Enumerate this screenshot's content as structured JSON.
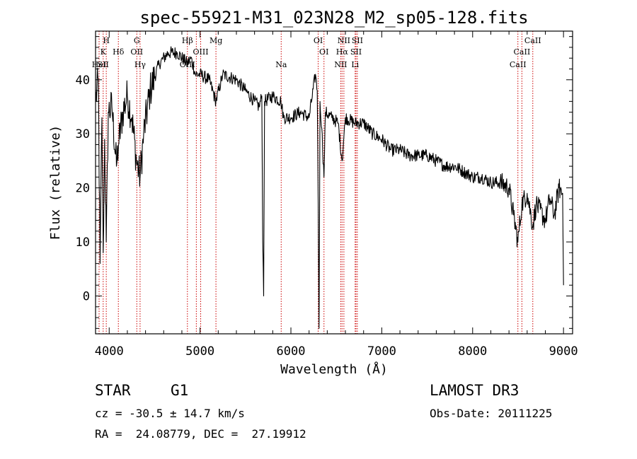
{
  "chart_data": {
    "type": "line",
    "title": "spec-55921-M31_023N28_M2_sp05-128.fits",
    "xlabel": "Wavelength (Å)",
    "ylabel": "Flux (relative)",
    "xlim": [
      3850,
      9100
    ],
    "ylim": [
      -7,
      49
    ],
    "x_ticks": [
      4000,
      5000,
      6000,
      7000,
      8000,
      9000
    ],
    "x_tick_labels": [
      "4000",
      "5000",
      "6000",
      "7000",
      "8000",
      "9000"
    ],
    "y_ticks": [
      0,
      10,
      20,
      30,
      40
    ],
    "y_tick_labels": [
      "0",
      "10",
      "20",
      "30",
      "40"
    ],
    "line_color": "#000000",
    "marker_line_color": "#cc0000",
    "spectrum_anchors": [
      [
        3850,
        36
      ],
      [
        3880,
        40
      ],
      [
        3900,
        6
      ],
      [
        3920,
        33
      ],
      [
        3934,
        8
      ],
      [
        3950,
        29
      ],
      [
        3968,
        10
      ],
      [
        3990,
        34
      ],
      [
        4030,
        35
      ],
      [
        4080,
        24
      ],
      [
        4102,
        28
      ],
      [
        4150,
        34
      ],
      [
        4200,
        37
      ],
      [
        4250,
        33
      ],
      [
        4300,
        25
      ],
      [
        4340,
        22
      ],
      [
        4380,
        30
      ],
      [
        4450,
        38
      ],
      [
        4550,
        43
      ],
      [
        4650,
        45
      ],
      [
        4750,
        45
      ],
      [
        4860,
        43
      ],
      [
        4900,
        44
      ],
      [
        4950,
        41
      ],
      [
        5000,
        41
      ],
      [
        5100,
        40
      ],
      [
        5175,
        36
      ],
      [
        5250,
        41
      ],
      [
        5400,
        40
      ],
      [
        5500,
        38
      ],
      [
        5600,
        36
      ],
      [
        5650,
        35
      ],
      [
        5680,
        37
      ],
      [
        5690,
        10
      ],
      [
        5700,
        0
      ],
      [
        5710,
        36
      ],
      [
        5800,
        37
      ],
      [
        5890,
        36
      ],
      [
        5920,
        33
      ],
      [
        6000,
        33
      ],
      [
        6100,
        34
      ],
      [
        6200,
        33
      ],
      [
        6270,
        41
      ],
      [
        6290,
        38
      ],
      [
        6300,
        18
      ],
      [
        6310,
        -6
      ],
      [
        6320,
        36
      ],
      [
        6340,
        31
      ],
      [
        6364,
        22
      ],
      [
        6380,
        34
      ],
      [
        6450,
        33
      ],
      [
        6520,
        32
      ],
      [
        6563,
        25
      ],
      [
        6600,
        33
      ],
      [
        6700,
        32
      ],
      [
        6800,
        32
      ],
      [
        6900,
        30
      ],
      [
        7000,
        29
      ],
      [
        7100,
        27
      ],
      [
        7200,
        27
      ],
      [
        7300,
        26
      ],
      [
        7400,
        26
      ],
      [
        7500,
        26
      ],
      [
        7600,
        25
      ],
      [
        7700,
        24
      ],
      [
        7800,
        24
      ],
      [
        7900,
        23
      ],
      [
        8000,
        22
      ],
      [
        8100,
        22
      ],
      [
        8200,
        21
      ],
      [
        8300,
        21
      ],
      [
        8400,
        20
      ],
      [
        8450,
        15
      ],
      [
        8498,
        10
      ],
      [
        8542,
        17
      ],
      [
        8600,
        19
      ],
      [
        8662,
        13
      ],
      [
        8700,
        17
      ],
      [
        8800,
        14
      ],
      [
        8850,
        18
      ],
      [
        8900,
        15
      ],
      [
        8950,
        20
      ],
      [
        8990,
        19
      ],
      [
        9000,
        2
      ]
    ],
    "line_markers": [
      {
        "x": 3889,
        "labels": [
          {
            "text": "HeI",
            "row": 3
          }
        ]
      },
      {
        "x": 3934,
        "labels": [
          {
            "text": "K",
            "row": 2
          },
          {
            "text": "SII",
            "row": 3
          }
        ]
      },
      {
        "x": 3968,
        "labels": [
          {
            "text": "H",
            "row": 1
          }
        ]
      },
      {
        "x": 4101,
        "labels": [
          {
            "text": "Hδ",
            "row": 2
          }
        ]
      },
      {
        "x": 4304,
        "labels": [
          {
            "text": "G",
            "row": 1
          },
          {
            "text": "OII",
            "row": 2
          }
        ]
      },
      {
        "x": 4340,
        "labels": [
          {
            "text": "Hγ",
            "row": 3
          }
        ]
      },
      {
        "x": 4861,
        "labels": [
          {
            "text": "Hβ",
            "row": 1
          },
          {
            "text": "OIII",
            "row": 3
          }
        ]
      },
      {
        "x": 4959,
        "labels": []
      },
      {
        "x": 5007,
        "labels": [
          {
            "text": "OIII",
            "row": 2
          }
        ]
      },
      {
        "x": 5175,
        "labels": [
          {
            "text": "Mg",
            "row": 1
          }
        ]
      },
      {
        "x": 5893,
        "labels": [
          {
            "text": "Na",
            "row": 3
          }
        ]
      },
      {
        "x": 6300,
        "labels": [
          {
            "text": "OI",
            "row": 1
          }
        ]
      },
      {
        "x": 6364,
        "labels": [
          {
            "text": "OI",
            "row": 2
          }
        ]
      },
      {
        "x": 6548,
        "labels": [
          {
            "text": "NII",
            "row": 3
          }
        ]
      },
      {
        "x": 6563,
        "labels": [
          {
            "text": "Hα",
            "row": 2
          }
        ]
      },
      {
        "x": 6583,
        "labels": [
          {
            "text": "NII",
            "row": 1
          }
        ]
      },
      {
        "x": 6707,
        "labels": [
          {
            "text": "Li",
            "row": 3
          }
        ]
      },
      {
        "x": 6716,
        "labels": [
          {
            "text": "SII",
            "row": 2
          }
        ]
      },
      {
        "x": 6731,
        "labels": [
          {
            "text": "SII",
            "row": 1
          }
        ]
      },
      {
        "x": 8498,
        "labels": [
          {
            "text": "CaII",
            "row": 3
          }
        ]
      },
      {
        "x": 8542,
        "labels": [
          {
            "text": "CaII",
            "row": 2
          }
        ]
      },
      {
        "x": 8662,
        "labels": [
          {
            "text": "CaII",
            "row": 1
          }
        ]
      }
    ]
  },
  "info": {
    "object_class": "STAR",
    "subclass": "G1",
    "survey": "LAMOST DR3",
    "cz": "cz = -30.5 ± 14.7 km/s",
    "obs_date": "Obs-Date: 20111225",
    "coords": "RA =  24.08779, DEC =  27.19912"
  }
}
